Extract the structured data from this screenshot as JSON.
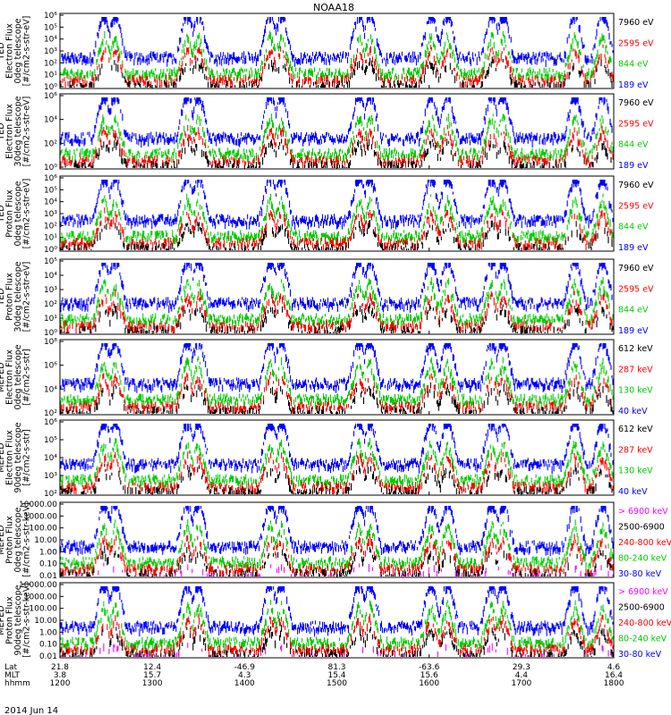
{
  "title": "NOAA18",
  "date_label": "2014 Jun 14",
  "colors": {
    "blue": "#0000ff",
    "red": "#ff0000",
    "green": "#00cc00",
    "black": "#000000",
    "magenta": "#ff00ff"
  },
  "x_axis": {
    "row_labels": [
      "Lat",
      "MLT",
      "hhmm"
    ],
    "ticks": [
      {
        "lat": "21.8",
        "mlt": "3.8",
        "hhmm": "1200"
      },
      {
        "lat": "12.4",
        "mlt": "15.7",
        "hhmm": "1300"
      },
      {
        "lat": "-46.9",
        "mlt": "4.3",
        "hhmm": "1400"
      },
      {
        "lat": "81.3",
        "mlt": "15.4",
        "hhmm": "1500"
      },
      {
        "lat": "-63.6",
        "mlt": "15.6",
        "hhmm": "1600"
      },
      {
        "lat": "29.3",
        "mlt": "4.4",
        "hhmm": "1700"
      },
      {
        "lat": "4.6",
        "mlt": "16.4",
        "hhmm": "1800"
      }
    ]
  },
  "chart_data": [
    {
      "type": "line",
      "instrument": "TED",
      "ylabel": [
        "TED",
        "Electron Flux",
        "0deg telescope",
        "[#/cm2-s-str-eV]"
      ],
      "yscale": "log",
      "ylim": [
        1,
        1000000
      ],
      "tick_labels": [
        "10⁰",
        "10¹",
        "10²",
        "10³",
        "10⁴",
        "10⁵",
        "10⁶"
      ],
      "series": [
        {
          "name": "7960 eV",
          "color": "black"
        },
        {
          "name": "2595 eV",
          "color": "red"
        },
        {
          "name": "844 eV",
          "color": "green"
        },
        {
          "name": "189 eV",
          "color": "blue"
        }
      ],
      "x_range_hhmm": [
        "1200",
        "1800"
      ]
    },
    {
      "type": "line",
      "instrument": "TED",
      "ylabel": [
        "TED",
        "Electron Flux",
        "30deg telescope",
        "[#/cm2-s-str-eV]"
      ],
      "yscale": "log",
      "ylim": [
        1,
        1000000
      ],
      "tick_labels": [
        "10⁰",
        "10²",
        "10⁴",
        "10⁶"
      ],
      "series": [
        {
          "name": "7960 eV",
          "color": "black"
        },
        {
          "name": "2595 eV",
          "color": "red"
        },
        {
          "name": "844 eV",
          "color": "green"
        },
        {
          "name": "189 eV",
          "color": "blue"
        }
      ],
      "x_range_hhmm": [
        "1200",
        "1800"
      ]
    },
    {
      "type": "line",
      "instrument": "TED",
      "ylabel": [
        "TED",
        "Proton Flux",
        "0deg telescope",
        "[#/cm2-s-str-eV]"
      ],
      "yscale": "log",
      "ylim": [
        1,
        1000000
      ],
      "tick_labels": [
        "10⁰",
        "10¹",
        "10²",
        "10³",
        "10⁴",
        "10⁵",
        "10⁶"
      ],
      "series": [
        {
          "name": "7960 eV",
          "color": "black"
        },
        {
          "name": "2595 eV",
          "color": "red"
        },
        {
          "name": "844 eV",
          "color": "green"
        },
        {
          "name": "189 eV",
          "color": "blue"
        }
      ],
      "x_range_hhmm": [
        "1200",
        "1800"
      ]
    },
    {
      "type": "line",
      "instrument": "TED",
      "ylabel": [
        "TED",
        "Proton Flux",
        "30deg telescope",
        "[#/cm2-s-str-eV]"
      ],
      "yscale": "log",
      "ylim": [
        1,
        100000
      ],
      "tick_labels": [
        "10⁰",
        "10¹",
        "10²",
        "10³",
        "10⁴",
        "10⁵"
      ],
      "series": [
        {
          "name": "7960 eV",
          "color": "black"
        },
        {
          "name": "2595 eV",
          "color": "red"
        },
        {
          "name": "844 eV",
          "color": "green"
        },
        {
          "name": "189 eV",
          "color": "blue"
        }
      ],
      "x_range_hhmm": [
        "1200",
        "1800"
      ]
    },
    {
      "type": "line",
      "instrument": "MEPED",
      "ylabel": [
        "MEPED",
        "Electron Flux",
        "0deg telescope",
        "[#/cm2-s-str]"
      ],
      "yscale": "log",
      "ylim": [
        100,
        100000000
      ],
      "tick_labels": [
        "10²",
        "10⁴",
        "10⁶",
        "10⁸"
      ],
      "series": [
        {
          "name": "612 keV",
          "color": "black"
        },
        {
          "name": "287 keV",
          "color": "red"
        },
        {
          "name": "130 keV",
          "color": "green"
        },
        {
          "name": "40 keV",
          "color": "blue"
        }
      ],
      "x_range_hhmm": [
        "1200",
        "1800"
      ]
    },
    {
      "type": "line",
      "instrument": "MEPED",
      "ylabel": [
        "MEPED",
        "Electron Flux",
        "90deg telescope",
        "[#/cm2-s-str]"
      ],
      "yscale": "log",
      "ylim": [
        100,
        1000000
      ],
      "tick_labels": [
        "10²",
        "10³",
        "10⁴",
        "10⁵",
        "10⁶"
      ],
      "series": [
        {
          "name": "612 keV",
          "color": "black"
        },
        {
          "name": "287 keV",
          "color": "red"
        },
        {
          "name": "130 keV",
          "color": "green"
        },
        {
          "name": "40 keV",
          "color": "blue"
        }
      ],
      "x_range_hhmm": [
        "1200",
        "1800"
      ]
    },
    {
      "type": "line",
      "instrument": "MEPED",
      "ylabel": [
        "MEPED",
        "Proton Flux",
        "0deg telescope",
        "[#/cm2-s-str-keV]"
      ],
      "yscale": "log",
      "ylim": [
        0.01,
        10000
      ],
      "tick_labels": [
        "0.01",
        "0.10",
        "1.00",
        "10.00",
        "100.00",
        "1000.00",
        "10000.00"
      ],
      "series": [
        {
          "name": "> 6900 keV",
          "color": "magenta"
        },
        {
          "name": "2500-6900",
          "color": "black"
        },
        {
          "name": "240-800 keV",
          "color": "red"
        },
        {
          "name": "80-240 keV",
          "color": "green"
        },
        {
          "name": "30-80 keV",
          "color": "blue"
        }
      ],
      "x_range_hhmm": [
        "1200",
        "1800"
      ]
    },
    {
      "type": "line",
      "instrument": "MEPED",
      "ylabel": [
        "MEPED",
        "Proton Flux",
        "90deg telescope",
        "[#/cm2-s-str-keV]"
      ],
      "yscale": "log",
      "ylim": [
        0.01,
        10000
      ],
      "tick_labels": [
        "0.01",
        "0.10",
        "1.00",
        "10.00",
        "100.00",
        "1000.00",
        "10000.00"
      ],
      "series": [
        {
          "name": "> 6900 keV",
          "color": "magenta"
        },
        {
          "name": "2500-6900",
          "color": "black"
        },
        {
          "name": "240-800 keV",
          "color": "red"
        },
        {
          "name": "80-240 keV",
          "color": "green"
        },
        {
          "name": "30-80 keV",
          "color": "blue"
        }
      ],
      "x_range_hhmm": [
        "1200",
        "1800"
      ]
    }
  ]
}
